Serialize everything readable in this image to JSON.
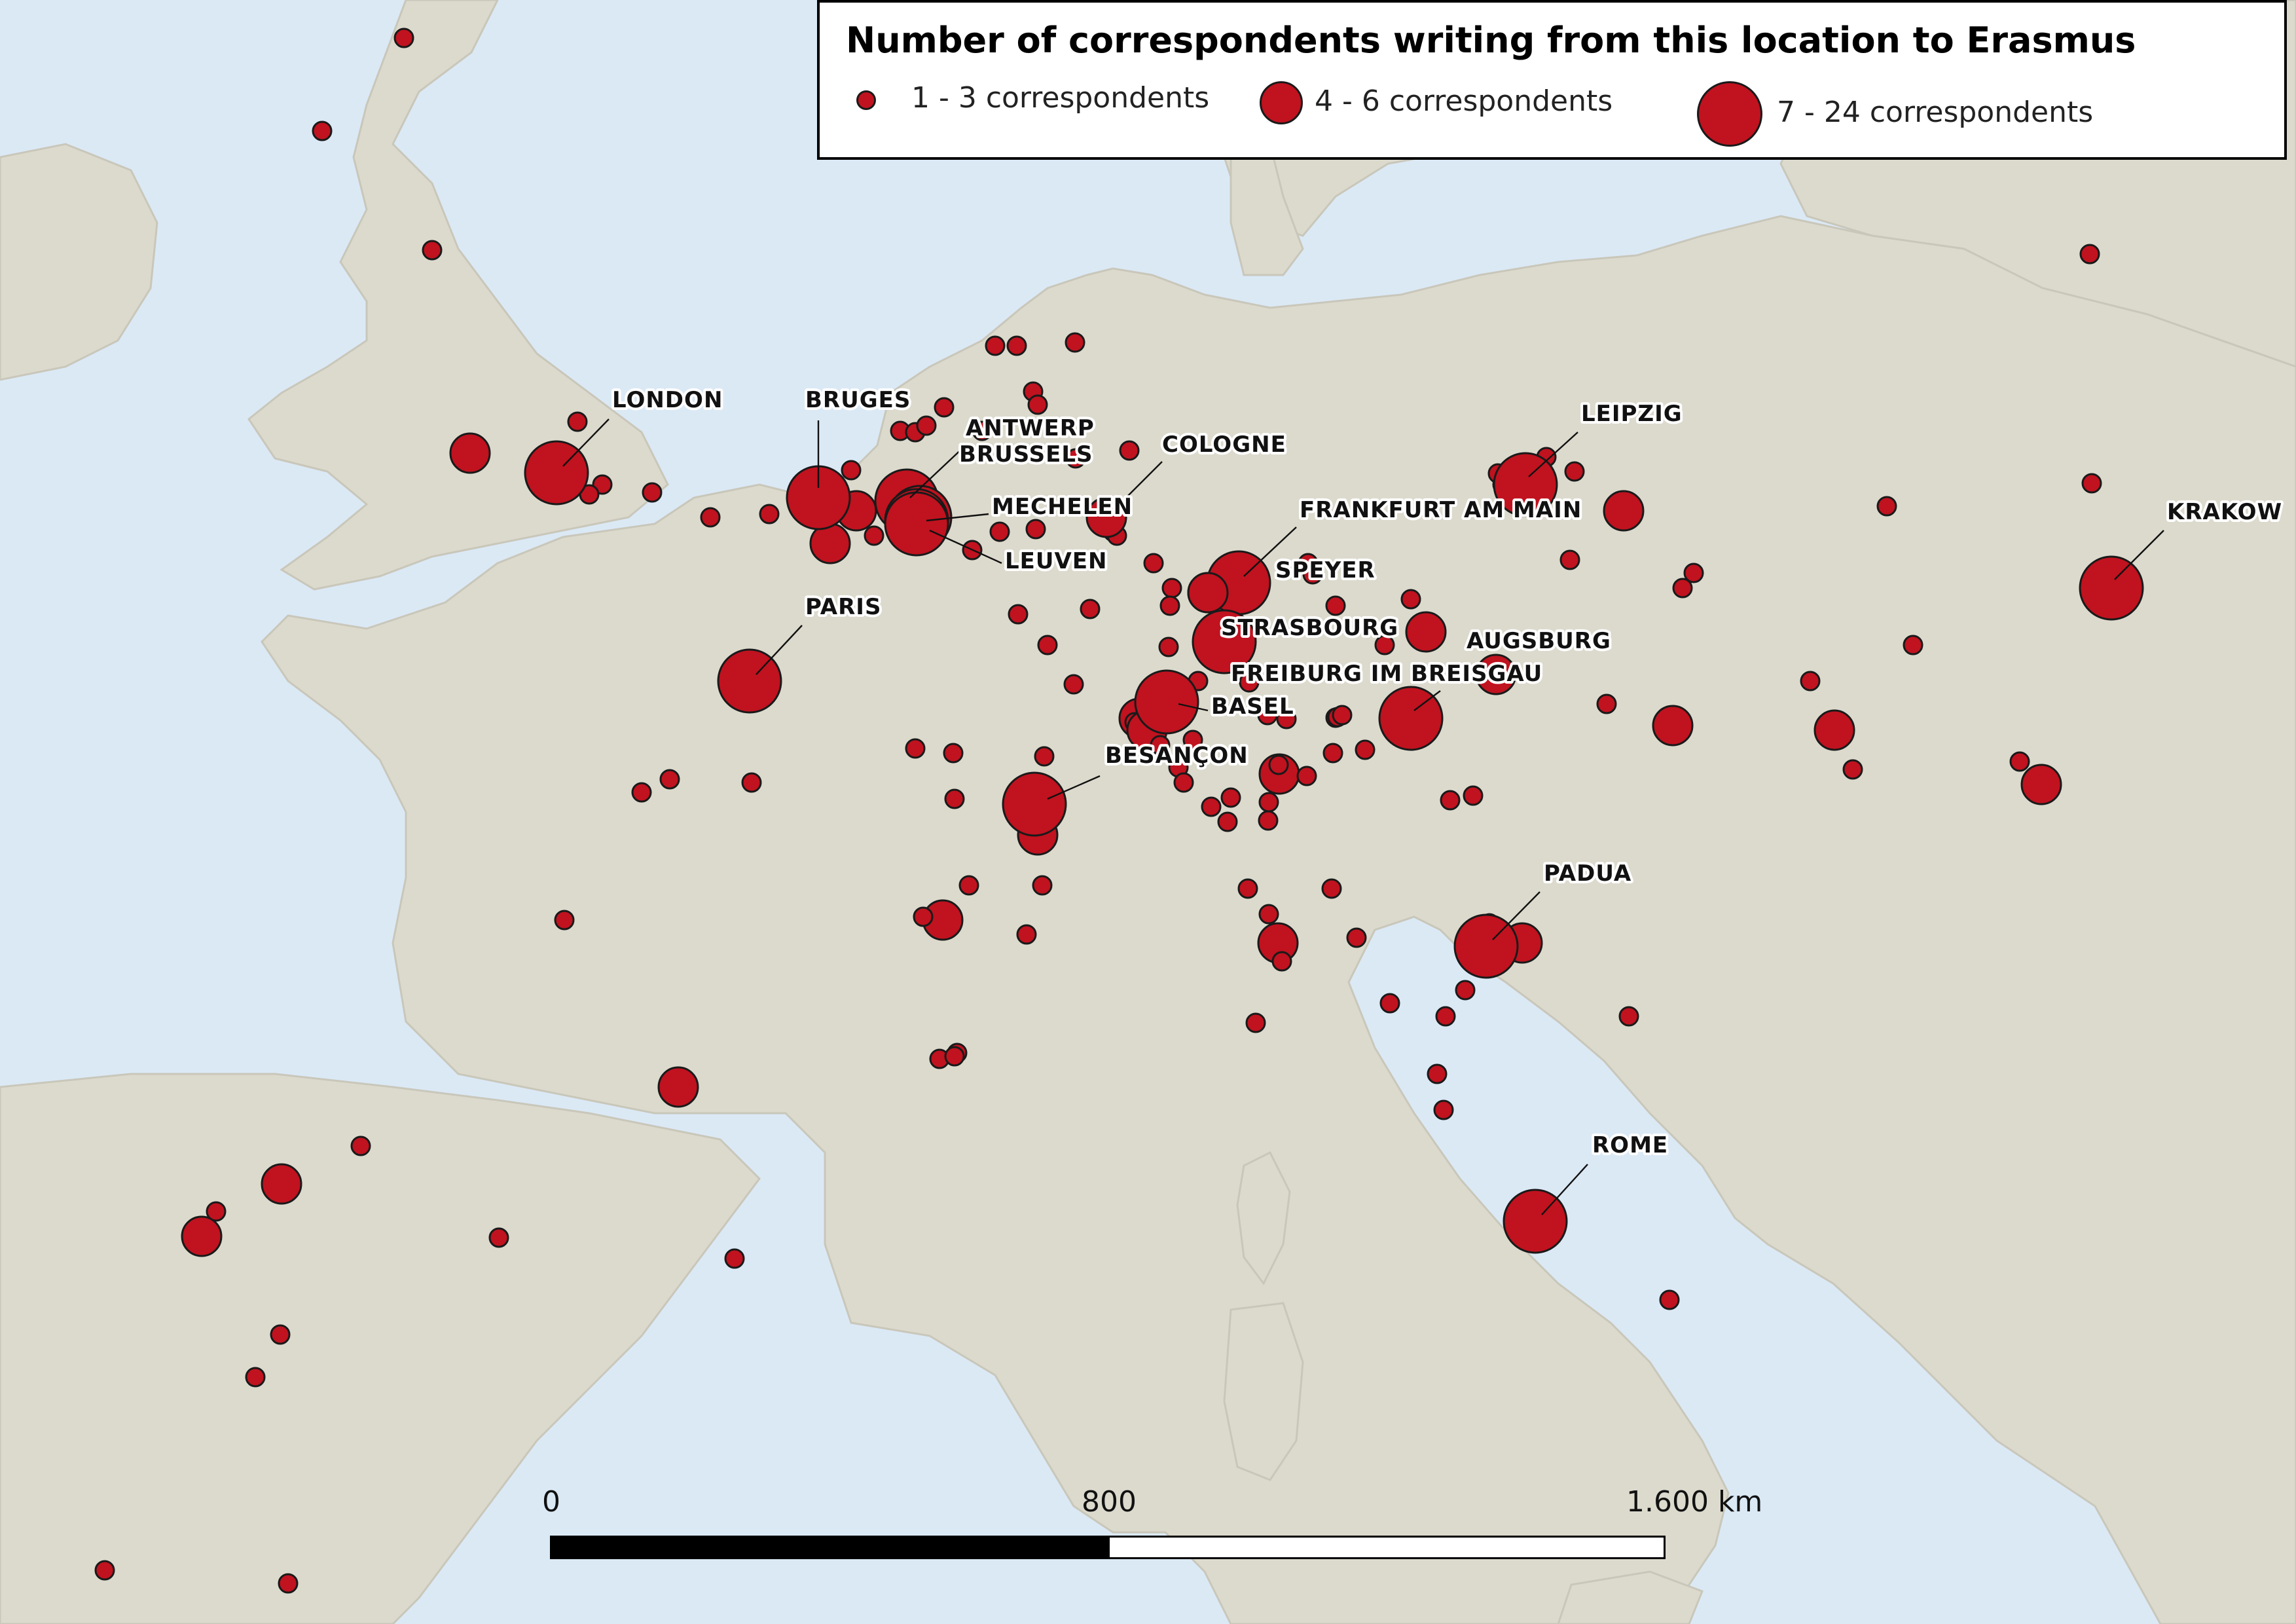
{
  "legend": {
    "title": "Number of correspondents writing from this location to Erasmus",
    "classes": [
      {
        "label": "1 - 3 correspondents",
        "class": "small"
      },
      {
        "label": "4  - 6 correspondents",
        "class": "medium"
      },
      {
        "label": "7 - 24 correspondents",
        "class": "large"
      }
    ]
  },
  "scale": {
    "labels": [
      "0",
      "800",
      "1.600 km"
    ]
  },
  "colors": {
    "sea": "#dbe9f5",
    "land": "#dcdacd",
    "marker": "#c1121f",
    "marker_stroke": "#1a1a1a"
  },
  "labelled_cities": [
    {
      "name": "LONDON",
      "size": "large"
    },
    {
      "name": "BRUGES",
      "size": "large"
    },
    {
      "name": "ANTWERP",
      "size": "large"
    },
    {
      "name": "BRUSSELS",
      "size": "large"
    },
    {
      "name": "MECHELEN",
      "size": "large"
    },
    {
      "name": "LEUVEN",
      "size": "large"
    },
    {
      "name": "COLOGNE",
      "size": "medium"
    },
    {
      "name": "PARIS",
      "size": "large"
    },
    {
      "name": "FRANKFURT AM MAIN",
      "size": "large"
    },
    {
      "name": "SPEYER",
      "size": "medium"
    },
    {
      "name": "STRASBOURG",
      "size": "large"
    },
    {
      "name": "FREIBURG IM BREISGAU",
      "size": "large"
    },
    {
      "name": "BASEL",
      "size": "large"
    },
    {
      "name": "BESANÇON",
      "size": "large"
    },
    {
      "name": "LEIPZIG",
      "size": "large"
    },
    {
      "name": "AUGSBURG",
      "size": "medium"
    },
    {
      "name": "KRAKOW",
      "size": "large"
    },
    {
      "name": "PADUA",
      "size": "large"
    },
    {
      "name": "ROME",
      "size": "large"
    }
  ]
}
